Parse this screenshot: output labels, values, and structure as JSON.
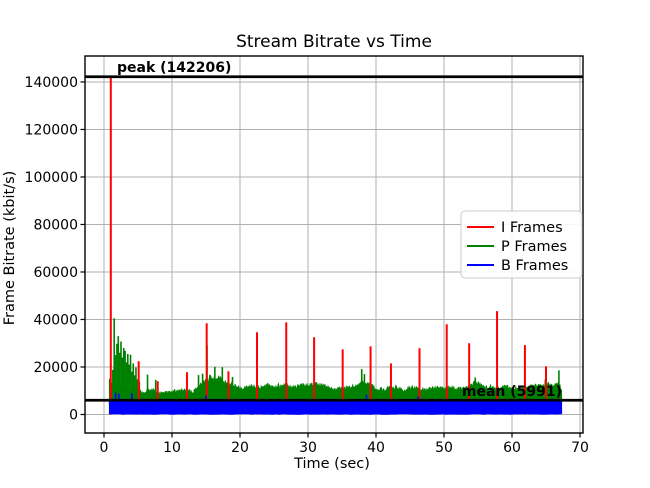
{
  "chart_data": {
    "type": "line",
    "title": "Stream Bitrate vs Time",
    "xlabel": "Time (sec)",
    "ylabel": "Frame Bitrate (kbit/s)",
    "xlim": [
      -2.8,
      70.4
    ],
    "ylim": [
      -7800,
      150900
    ],
    "x_ticks": [
      0,
      10,
      20,
      30,
      40,
      50,
      60,
      70
    ],
    "y_ticks": [
      0,
      20000,
      40000,
      60000,
      80000,
      100000,
      120000,
      140000
    ],
    "grid": true,
    "grid_color": "#b0b0b0",
    "legend_position": "center-right",
    "legend": [
      "I Frames",
      "P Frames",
      "B Frames"
    ],
    "peak": {
      "label": "peak (142206)",
      "value": 142206,
      "color": "#000000"
    },
    "mean": {
      "label": "mean (5991)",
      "value": 5991,
      "color": "#000000"
    },
    "x_data_range": [
      0.8,
      67.3
    ],
    "series": [
      {
        "name": "I Frames",
        "color": "#ff0000",
        "type": "spikes",
        "points": [
          [
            1.0,
            142206
          ],
          [
            5.1,
            22400
          ],
          [
            7.9,
            14000
          ],
          [
            12.2,
            17800
          ],
          [
            15.1,
            38400
          ],
          [
            18.3,
            18200
          ],
          [
            22.5,
            34600
          ],
          [
            26.8,
            38800
          ],
          [
            30.9,
            32500
          ],
          [
            35.1,
            27400
          ],
          [
            39.2,
            28700
          ],
          [
            42.2,
            21500
          ],
          [
            46.4,
            27900
          ],
          [
            50.4,
            38000
          ],
          [
            53.7,
            30000
          ],
          [
            57.8,
            43500
          ],
          [
            61.9,
            29200
          ],
          [
            65.0,
            20300
          ]
        ]
      },
      {
        "name": "P Frames",
        "color": "#008000",
        "type": "noisy-band",
        "band_bottom": 4000,
        "jitter": 0.26,
        "seed": 7,
        "envelope": [
          [
            0.8,
            15000
          ],
          [
            2.0,
            13500
          ],
          [
            3.0,
            12000
          ],
          [
            4.0,
            11000
          ],
          [
            5,
            10500
          ],
          [
            6,
            10000
          ],
          [
            7,
            11500
          ],
          [
            8,
            10000
          ],
          [
            9,
            9500
          ],
          [
            10,
            10800
          ],
          [
            11,
            10800
          ],
          [
            12,
            11500
          ],
          [
            13,
            10000
          ],
          [
            14,
            13500
          ],
          [
            15,
            16000
          ],
          [
            16,
            17000
          ],
          [
            17,
            16500
          ],
          [
            18,
            14500
          ],
          [
            19,
            13500
          ],
          [
            20,
            12000
          ],
          [
            21,
            12500
          ],
          [
            22,
            13000
          ],
          [
            23,
            12500
          ],
          [
            24,
            13500
          ],
          [
            25,
            13000
          ],
          [
            26,
            12800
          ],
          [
            27,
            13500
          ],
          [
            28,
            12200
          ],
          [
            29,
            12800
          ],
          [
            30,
            13800
          ],
          [
            31,
            13200
          ],
          [
            32,
            14200
          ],
          [
            33,
            12800
          ],
          [
            34,
            11800
          ],
          [
            35,
            11800
          ],
          [
            36,
            12200
          ],
          [
            37,
            13200
          ],
          [
            38,
            15500
          ],
          [
            39,
            13800
          ],
          [
            40,
            11800
          ],
          [
            41,
            11200
          ],
          [
            42,
            11800
          ],
          [
            43,
            12200
          ],
          [
            44,
            11200
          ],
          [
            45,
            11800
          ],
          [
            46,
            12200
          ],
          [
            47,
            11200
          ],
          [
            48,
            11800
          ],
          [
            49,
            12200
          ],
          [
            50,
            11800
          ],
          [
            51,
            12200
          ],
          [
            52,
            11800
          ],
          [
            53,
            12200
          ],
          [
            54,
            13800
          ],
          [
            55,
            14200
          ],
          [
            56,
            12800
          ],
          [
            57,
            12200
          ],
          [
            58,
            12200
          ],
          [
            59,
            12800
          ],
          [
            60,
            12200
          ],
          [
            61,
            11800
          ],
          [
            62,
            12200
          ],
          [
            63,
            12800
          ],
          [
            64,
            13200
          ],
          [
            65,
            13800
          ],
          [
            66,
            13200
          ],
          [
            67,
            15000
          ],
          [
            67.3,
            10000
          ]
        ],
        "spikes": [
          [
            1.3,
            18800
          ],
          [
            1.5,
            40500
          ],
          [
            1.7,
            25000
          ],
          [
            1.9,
            29800
          ],
          [
            2.1,
            33000
          ],
          [
            2.3,
            26000
          ],
          [
            2.5,
            30700
          ],
          [
            2.7,
            24000
          ],
          [
            2.9,
            28000
          ],
          [
            3.1,
            26800
          ],
          [
            3.3,
            22000
          ],
          [
            3.5,
            25500
          ],
          [
            3.7,
            21000
          ],
          [
            3.9,
            25200
          ],
          [
            4.1,
            18000
          ],
          [
            4.3,
            21500
          ],
          [
            4.5,
            16500
          ],
          [
            4.7,
            19800
          ],
          [
            4.9,
            14800
          ],
          [
            5.2,
            13800
          ],
          [
            6.4,
            16800
          ],
          [
            7.6,
            14600
          ],
          [
            13.9,
            16600
          ],
          [
            14.5,
            17200
          ],
          [
            15.15,
            29200
          ],
          [
            16.3,
            20100
          ],
          [
            17.4,
            19900
          ],
          [
            18.9,
            15800
          ],
          [
            37.9,
            19100
          ],
          [
            38.3,
            17000
          ],
          [
            54.6,
            15600
          ],
          [
            64.9,
            14700
          ],
          [
            66.9,
            18600
          ]
        ]
      },
      {
        "name": "B Frames",
        "color": "#0000ff",
        "type": "noisy-band",
        "band_bottom": 250,
        "jitter": 0.3,
        "seed": 3,
        "envelope": [
          [
            0.8,
            6200
          ],
          [
            67.3,
            6200
          ]
        ],
        "spikes": [
          [
            1.7,
            9300
          ],
          [
            2.2,
            8700
          ],
          [
            4.1,
            8900
          ],
          [
            15.0,
            8000
          ],
          [
            38.6,
            8300
          ],
          [
            46.2,
            7600
          ]
        ]
      }
    ]
  }
}
